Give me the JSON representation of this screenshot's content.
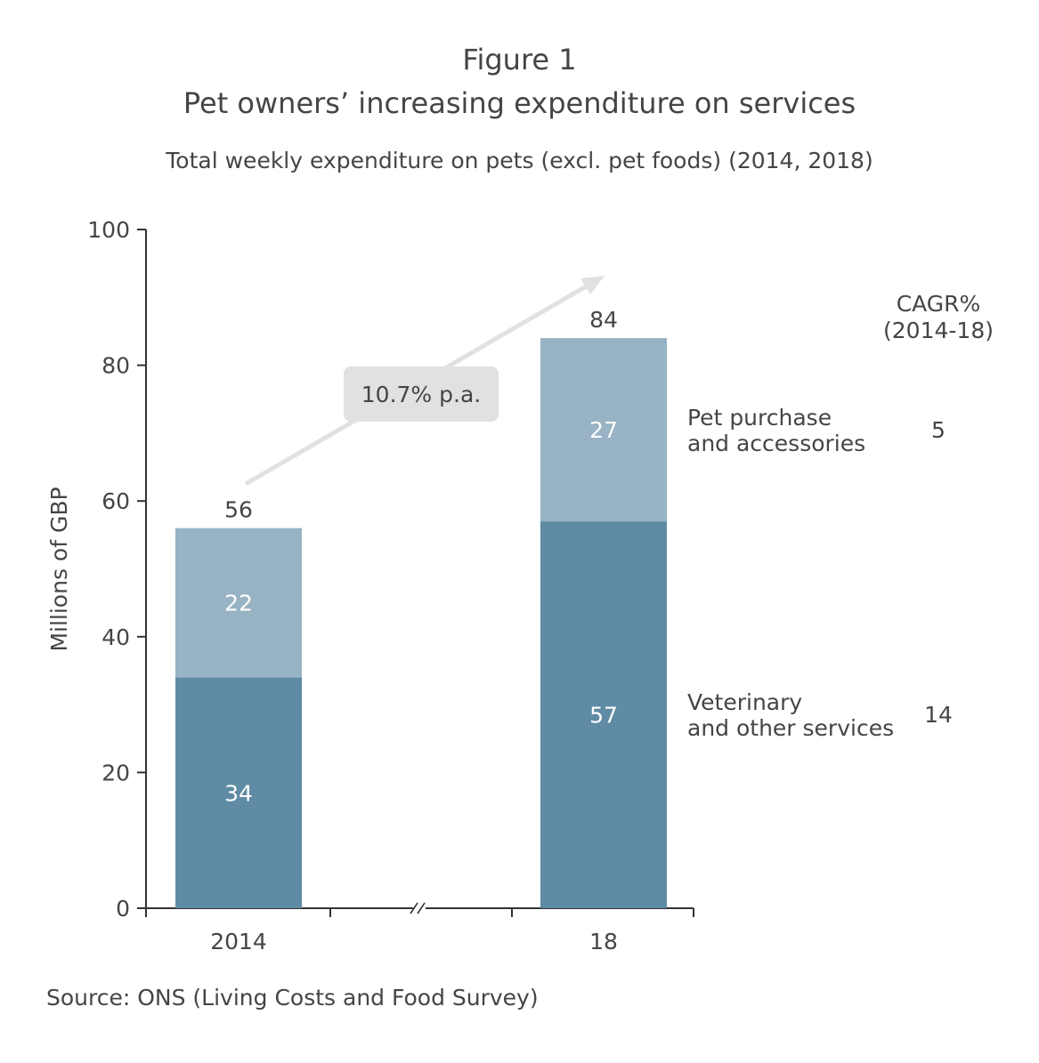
{
  "figure_label": "Figure 1",
  "title": "Pet owners’ increasing expenditure on services",
  "subtitle": "Total weekly expenditure on pets (excl. pet foods) (2014, 2018)",
  "source": "Source: ONS (Living Costs and Food Survey)",
  "colors": {
    "services": "#5f8ba4",
    "purchase": "#97b3c4",
    "arrow": "#e1e1e1",
    "callout_bg": "#e1e1e1",
    "text": "#454545",
    "axis": "#333333"
  },
  "chart_data": {
    "type": "bar",
    "stacked": true,
    "categories": [
      "2014",
      "18"
    ],
    "series": [
      {
        "name": "Veterinary and other services",
        "values": [
          34,
          57
        ],
        "cagr": "14"
      },
      {
        "name": "Pet purchase and accessories",
        "values": [
          22,
          27
        ],
        "cagr": "5"
      }
    ],
    "totals": [
      56,
      84
    ],
    "ylabel": "Millions of GBP",
    "ylim": [
      0,
      100
    ],
    "yticks": [
      0,
      20,
      40,
      60,
      80,
      100
    ],
    "axis_break": true,
    "grid": false,
    "annotation": "10.7% p.a.",
    "cagr_header": [
      "CAGR%",
      "(2014-18)"
    ],
    "series_labels": {
      "purchase": [
        "Pet purchase",
        "and accessories"
      ],
      "services": [
        "Veterinary",
        "and other services"
      ]
    }
  }
}
